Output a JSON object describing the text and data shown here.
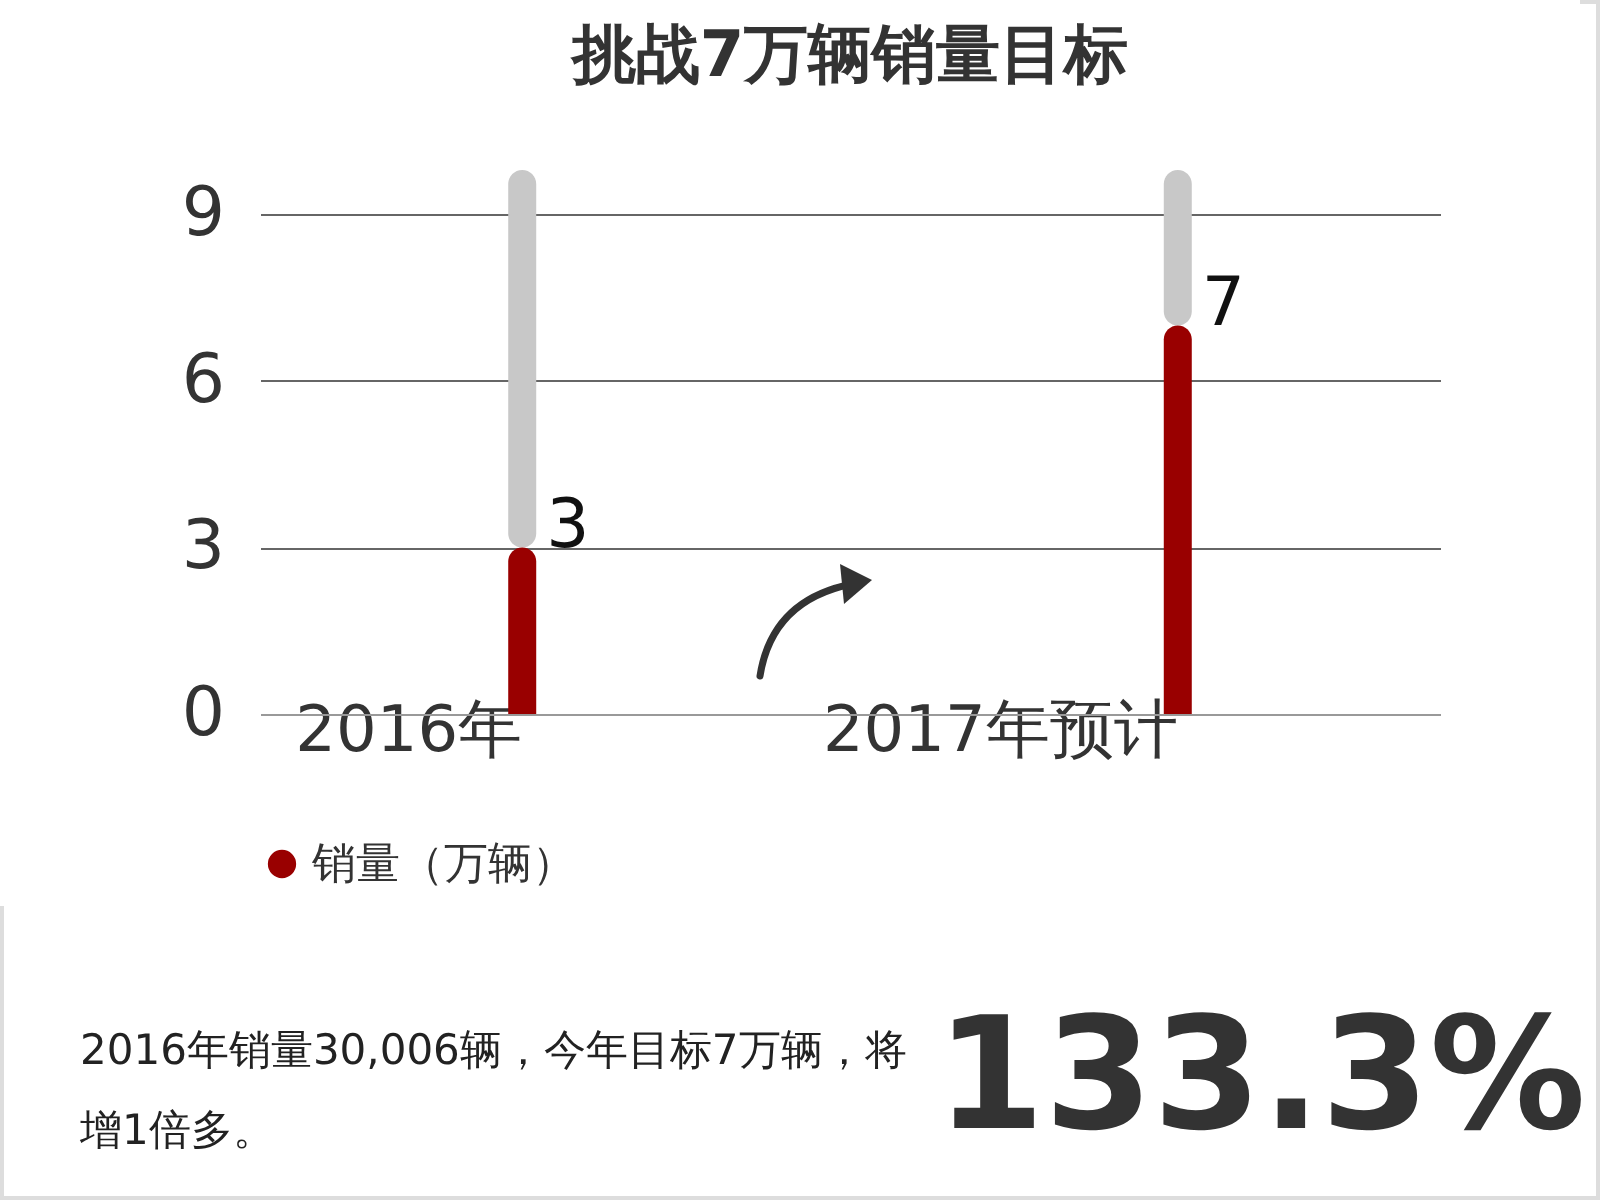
{
  "chart_data": {
    "type": "bar",
    "title": "挑战7万辆销量目标",
    "categories": [
      "2016年",
      "2017年预计"
    ],
    "series": [
      {
        "name": "销量（万辆）",
        "color": "#990000",
        "values": [
          3,
          7
        ],
        "value_labels": [
          "3",
          "7"
        ]
      },
      {
        "color": "#c8c8c8",
        "values": [
          6.8,
          2.8
        ]
      }
    ],
    "stacked": true,
    "ylim": [
      0,
      9.8
    ],
    "yticks": [
      0,
      3,
      6,
      9
    ],
    "grid": "y",
    "legend": "bottom",
    "annotations": [
      "2016年销量30,006辆，今年目标7万辆，将增1倍多。",
      "133.3%"
    ]
  }
}
